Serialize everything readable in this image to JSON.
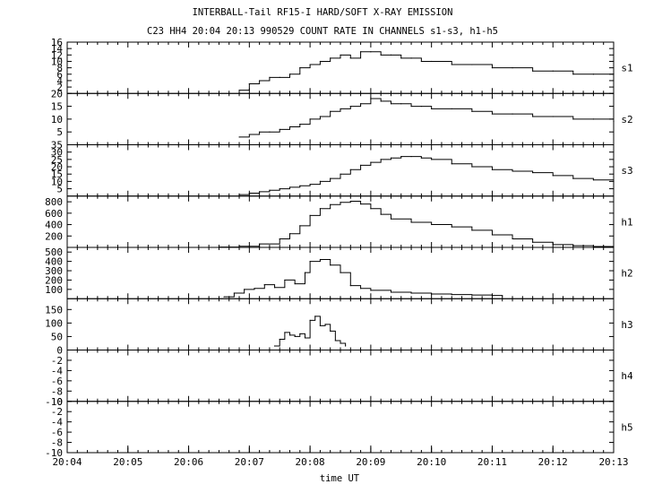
{
  "chart_data": {
    "type": "line",
    "title": "INTERBALL-Tail RF15-I HARD/SOFT X-RAY EMISSION",
    "subtitle": "C23 HH4 20:04 20:13 990529  COUNT RATE IN CHANNELS s1-s3, h1-h5",
    "xlabel": "time UT",
    "x_ticks": [
      "20:04",
      "20:05",
      "20:06",
      "20:07",
      "20:08",
      "20:09",
      "20:10",
      "20:11",
      "20:12",
      "20:13"
    ],
    "xlim": [
      "20:04",
      "20:13"
    ],
    "panels": [
      {
        "name": "s1",
        "ylim": [
          0,
          16
        ],
        "yticks": [
          "16",
          "14",
          "12",
          "10",
          "8",
          "6",
          "4",
          "2"
        ],
        "ytick_values": [
          16,
          14,
          12,
          10,
          8,
          6,
          4,
          2
        ],
        "series": [
          {
            "x": [
              "20:06:50",
              "20:07:00",
              "20:07:10",
              "20:07:20",
              "20:07:30",
              "20:07:40",
              "20:07:50",
              "20:08:00",
              "20:08:10",
              "20:08:20",
              "20:08:30",
              "20:08:40",
              "20:08:50",
              "20:09:00",
              "20:09:10",
              "20:09:20",
              "20:09:30",
              "20:09:40",
              "20:09:50",
              "20:10:00",
              "20:10:20",
              "20:10:40",
              "20:11:00",
              "20:11:20",
              "20:11:40",
              "20:12:00",
              "20:12:20",
              "20:12:40",
              "20:13:00"
            ],
            "y": [
              1,
              3,
              4,
              5,
              5,
              6,
              8,
              9,
              10,
              11,
              12,
              11,
              13,
              13,
              12,
              12,
              11,
              11,
              10,
              10,
              9,
              9,
              8,
              8,
              7,
              7,
              6,
              6,
              6
            ]
          }
        ]
      },
      {
        "name": "s2",
        "ylim": [
          0,
          20
        ],
        "yticks": [
          "20",
          "15",
          "10",
          "5"
        ],
        "ytick_values": [
          20,
          15,
          10,
          5
        ],
        "series": [
          {
            "x": [
              "20:06:50",
              "20:07:00",
              "20:07:10",
              "20:07:20",
              "20:07:30",
              "20:07:40",
              "20:07:50",
              "20:08:00",
              "20:08:10",
              "20:08:20",
              "20:08:30",
              "20:08:40",
              "20:08:50",
              "20:09:00",
              "20:09:10",
              "20:09:20",
              "20:09:30",
              "20:09:40",
              "20:09:50",
              "20:10:00",
              "20:10:20",
              "20:10:40",
              "20:11:00",
              "20:11:20",
              "20:11:40",
              "20:12:00",
              "20:12:20",
              "20:12:40",
              "20:13:00"
            ],
            "y": [
              3,
              4,
              5,
              5,
              6,
              7,
              8,
              10,
              11,
              13,
              14,
              15,
              16,
              18,
              17,
              16,
              16,
              15,
              15,
              14,
              14,
              13,
              12,
              12,
              11,
              11,
              10,
              10,
              9
            ]
          }
        ]
      },
      {
        "name": "s3",
        "ylim": [
          0,
          35
        ],
        "yticks": [
          "35",
          "30",
          "25",
          "20",
          "15",
          "10",
          "5"
        ],
        "ytick_values": [
          35,
          30,
          25,
          20,
          15,
          10,
          5
        ],
        "series": [
          {
            "x": [
              "20:06:50",
              "20:07:00",
              "20:07:10",
              "20:07:20",
              "20:07:30",
              "20:07:40",
              "20:07:50",
              "20:08:00",
              "20:08:10",
              "20:08:20",
              "20:08:30",
              "20:08:40",
              "20:08:50",
              "20:09:00",
              "20:09:10",
              "20:09:20",
              "20:09:30",
              "20:09:40",
              "20:09:50",
              "20:10:00",
              "20:10:20",
              "20:10:40",
              "20:11:00",
              "20:11:20",
              "20:11:40",
              "20:12:00",
              "20:12:20",
              "20:12:40",
              "20:13:00"
            ],
            "y": [
              1,
              2,
              3,
              4,
              5,
              6,
              7,
              8,
              10,
              12,
              15,
              18,
              21,
              23,
              25,
              26,
              27,
              27,
              26,
              25,
              22,
              20,
              18,
              17,
              16,
              14,
              12,
              11,
              10
            ]
          }
        ]
      },
      {
        "name": "h1",
        "ylim": [
          0,
          900
        ],
        "yticks": [
          "800",
          "600",
          "400",
          "200"
        ],
        "ytick_values": [
          800,
          600,
          400,
          200
        ],
        "series": [
          {
            "x": [
              "20:06:30",
              "20:06:50",
              "20:07:10",
              "20:07:30",
              "20:07:40",
              "20:07:50",
              "20:08:00",
              "20:08:10",
              "20:08:20",
              "20:08:30",
              "20:08:40",
              "20:08:50",
              "20:09:00",
              "20:09:10",
              "20:09:20",
              "20:09:40",
              "20:10:00",
              "20:10:20",
              "20:10:40",
              "20:11:00",
              "20:11:20",
              "20:11:40",
              "20:12:00",
              "20:12:20",
              "20:12:40",
              "20:13:00"
            ],
            "y": [
              5,
              20,
              60,
              150,
              240,
              380,
              560,
              680,
              750,
              790,
              810,
              760,
              680,
              580,
              500,
              440,
              400,
              360,
              300,
              220,
              150,
              90,
              50,
              30,
              15,
              10
            ]
          }
        ]
      },
      {
        "name": "h2",
        "ylim": [
          0,
          550
        ],
        "yticks": [
          "500",
          "400",
          "300",
          "200",
          "100"
        ],
        "ytick_values": [
          500,
          400,
          300,
          200,
          100
        ],
        "series": [
          {
            "x": [
              "20:06:35",
              "20:06:45",
              "20:06:55",
              "20:07:05",
              "20:07:15",
              "20:07:25",
              "20:07:35",
              "20:07:45",
              "20:07:55",
              "20:08:00",
              "20:08:10",
              "20:08:20",
              "20:08:30",
              "20:08:40",
              "20:08:50",
              "20:09:00",
              "20:09:20",
              "20:09:40",
              "20:10:00",
              "20:10:20",
              "20:10:40",
              "20:11:00",
              "20:11:10"
            ],
            "y": [
              20,
              60,
              100,
              110,
              150,
              120,
              200,
              160,
              280,
              400,
              420,
              360,
              280,
              140,
              110,
              90,
              70,
              60,
              50,
              45,
              40,
              35,
              30
            ]
          }
        ]
      },
      {
        "name": "h3",
        "ylim": [
          0,
          190
        ],
        "yticks": [
          "150",
          "100",
          "50"
        ],
        "ytick_values": [
          150,
          100,
          50
        ],
        "series": [
          {
            "x": [
              "20:07:25",
              "20:07:30",
              "20:07:35",
              "20:07:40",
              "20:07:45",
              "20:07:50",
              "20:07:55",
              "20:08:00",
              "20:08:05",
              "20:08:10",
              "20:08:15",
              "20:08:20",
              "20:08:25",
              "20:08:30",
              "20:08:35"
            ],
            "y": [
              15,
              40,
              65,
              55,
              50,
              60,
              45,
              110,
              125,
              90,
              95,
              70,
              35,
              25,
              15
            ]
          }
        ]
      },
      {
        "name": "h4",
        "ylim": [
          -10,
          0
        ],
        "yticks": [
          "-10",
          "-8",
          "-6",
          "-4",
          "-2",
          "0"
        ],
        "ytick_values": [
          -10,
          -8,
          -6,
          -4,
          -2,
          0
        ],
        "series": []
      },
      {
        "name": "h5",
        "ylim": [
          -10,
          0
        ],
        "yticks": [
          "-10",
          "-8",
          "-6",
          "-4",
          "-2",
          "0"
        ],
        "ytick_values": [
          -10,
          -8,
          -6,
          -4,
          -2,
          0
        ],
        "series": []
      }
    ],
    "grid": false,
    "legend": "panel labels at right"
  }
}
